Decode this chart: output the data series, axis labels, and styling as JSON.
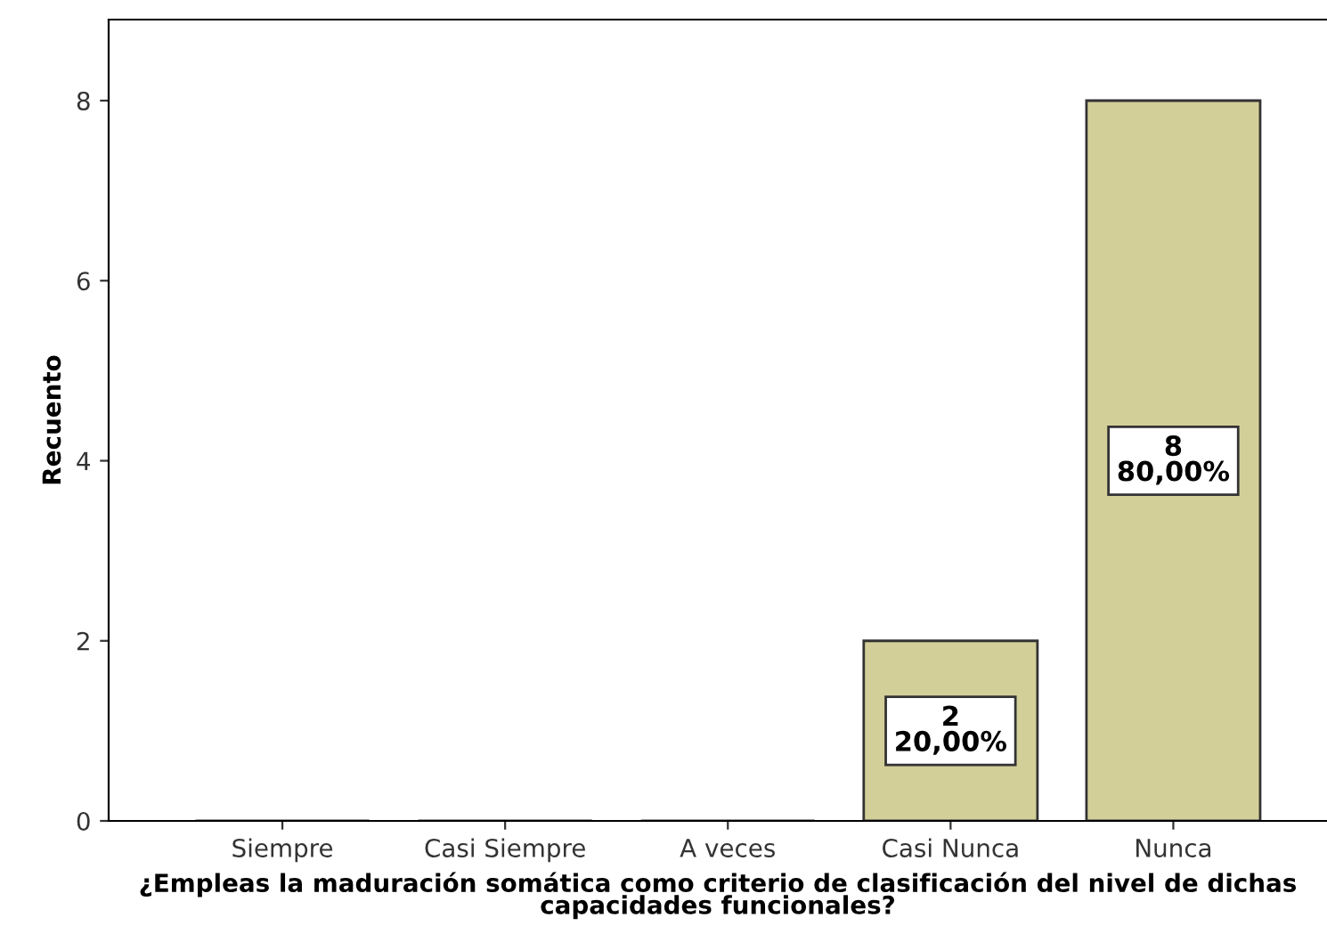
{
  "chart_data": {
    "type": "bar",
    "xlabel": "¿Empleas la maduración somática como criterio de clasificación del nivel de dichas capacidades funcionales?",
    "ylabel": "Recuento",
    "categories": [
      "Siempre",
      "Casi Siempre",
      "A veces",
      "Casi Nunca",
      "Nunca"
    ],
    "values": [
      0,
      0,
      0,
      2,
      8
    ],
    "value_labels": [
      null,
      null,
      null,
      "2\n20,00%",
      "8\n80,00%"
    ],
    "color": "#d3cf98",
    "ylim": [
      0,
      8.9
    ],
    "yticks": [
      0,
      2,
      4,
      6,
      8
    ],
    "grid": false,
    "legend": false
  }
}
